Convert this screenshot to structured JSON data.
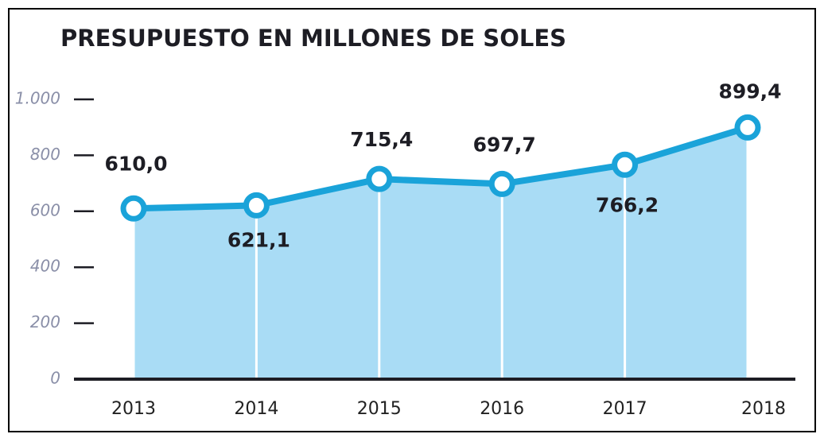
{
  "chart_data": {
    "type": "area-line",
    "title": "PRESUPUESTO EN MILLONES DE SOLES",
    "categories": [
      "2013",
      "2014",
      "2015",
      "2016",
      "2017",
      "2018"
    ],
    "values": [
      610.0,
      621.1,
      715.4,
      697.7,
      766.2,
      899.4
    ],
    "value_labels": [
      "610,0",
      "621,1",
      "715,4",
      "697,7",
      "766,2",
      "899,4"
    ],
    "color": "#1aa3d9",
    "fill_color": "#a9dcf5",
    "ylim": [
      0,
      1000
    ],
    "yticks": [
      0,
      200,
      400,
      600,
      800,
      {
        "value": 1000,
        "label": "1.000"
      }
    ]
  }
}
